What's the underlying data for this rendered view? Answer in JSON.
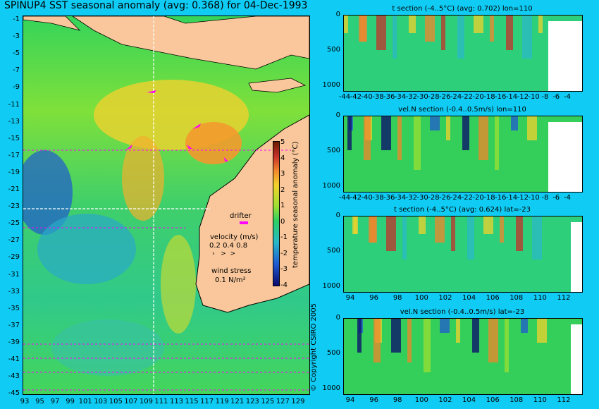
{
  "map": {
    "title": "SPINUP4 SST seasonal anomaly (avg: 0.368) for 04-Dec-1993",
    "lat_ticks": [
      "-1",
      "-3",
      "-5",
      "-7",
      "-9",
      "-11",
      "-13",
      "-15",
      "-17",
      "-19",
      "-21",
      "-23",
      "-25",
      "-27",
      "-29",
      "-31",
      "-33",
      "-35",
      "-37",
      "-39",
      "-41",
      "-43",
      "-45"
    ],
    "lon_ticks": [
      "93",
      "95",
      "97",
      "99",
      "101",
      "103",
      "105",
      "107",
      "109",
      "111",
      "113",
      "115",
      "117",
      "119",
      "121",
      "123",
      "125",
      "127",
      "129"
    ],
    "colorbar": {
      "label": "temperature seasonal anomaly (°C)",
      "ticks": [
        "5",
        "4",
        "3",
        "2",
        "1",
        "0",
        "-1",
        "-2",
        "-3",
        "-4"
      ]
    },
    "legend": {
      "drifter": "drifter",
      "velocity_title": "velocity (m/s)",
      "velocity_scale": "0.2 0.4 0.8",
      "wind_title": "wind stress",
      "wind_scale": "0.1 N/m²"
    },
    "copyright": "© Copyright CSIRO 2005",
    "colors": {
      "background": "#10ccf4",
      "land": "#f9c79b",
      "drifter": "#ff00ff",
      "section_line": "#ffffff"
    }
  },
  "sections": [
    {
      "title": "t section (-4..5°C) (avg: 0.702) lon=110",
      "y_ticks": [
        "0",
        "500",
        "1000"
      ],
      "x_ticks": [
        "-44",
        "-42",
        "-40",
        "-38",
        "-36",
        "-34",
        "-32",
        "-30",
        "-28",
        "-26",
        "-24",
        "-22",
        "-20",
        "-18",
        "-16",
        "-14",
        "-12",
        "-10",
        "-8",
        "-6",
        "-4"
      ]
    },
    {
      "title": "vel.N section (-0.4..0.5m/s) lon=110",
      "y_ticks": [
        "0",
        "500",
        "1000"
      ],
      "x_ticks": [
        "-44",
        "-42",
        "-40",
        "-38",
        "-36",
        "-34",
        "-32",
        "-30",
        "-28",
        "-26",
        "-24",
        "-22",
        "-20",
        "-18",
        "-16",
        "-14",
        "-12",
        "-10",
        "-8",
        "-6",
        "-4"
      ]
    },
    {
      "title": "t section (-4..5°C) (avg: 0.624) lat=-23",
      "y_ticks": [
        "0",
        "500",
        "1000"
      ],
      "x_ticks": [
        "94",
        "96",
        "98",
        "100",
        "102",
        "104",
        "106",
        "108",
        "110",
        "112"
      ]
    },
    {
      "title": "vel.N section (-0.4..0.5m/s) lat=-23",
      "y_ticks": [
        "0",
        "500",
        "1000"
      ],
      "x_ticks": [
        "94",
        "96",
        "98",
        "100",
        "102",
        "104",
        "106",
        "108",
        "110",
        "112"
      ]
    }
  ]
}
